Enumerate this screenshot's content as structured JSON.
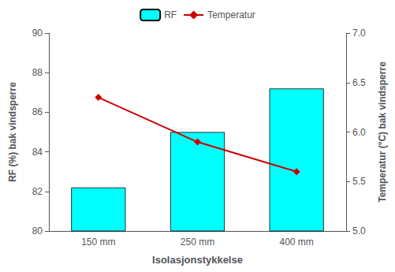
{
  "chart_data": {
    "type": "bar",
    "categories": [
      "150 mm",
      "250 mm",
      "400 mm"
    ],
    "xlabel": "Isolasjonstykkelse",
    "ylabel": "RF (%) bak vindsperre",
    "y2label": "Temperatur (°C) bak vindsperre",
    "series": [
      {
        "name": "RF",
        "type": "bar",
        "color": "#00FFFF",
        "values": [
          82.2,
          85.0,
          87.2
        ]
      },
      {
        "name": "Temperatur",
        "type": "line",
        "color": "#CC0000",
        "marker": "diamond",
        "axis": "y2",
        "values": [
          6.35,
          5.9,
          5.6
        ]
      }
    ],
    "ylim": [
      80,
      90
    ],
    "yticks": [
      80,
      82,
      84,
      86,
      88,
      90
    ],
    "y2lim": [
      5.0,
      7.0
    ],
    "y2ticks": [
      {
        "value": 5.0,
        "label": "5.0"
      },
      5.5,
      {
        "value": 6.0,
        "label": "6.0"
      },
      6.5,
      {
        "value": 7.0,
        "label": "7.0"
      }
    ],
    "grid": false,
    "legend": "top"
  }
}
